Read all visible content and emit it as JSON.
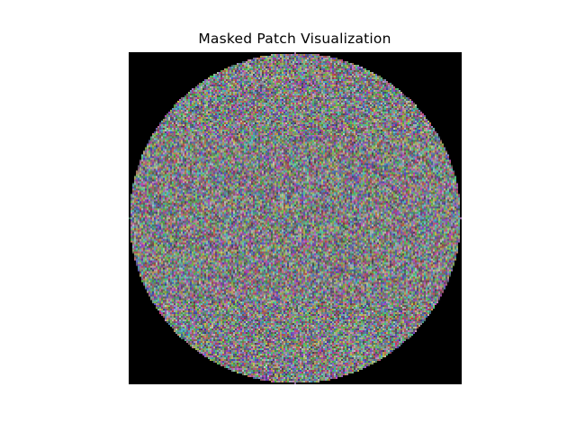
{
  "figure": {
    "title": "Masked Patch Visualization"
  },
  "image": {
    "mask_shape": "circle",
    "background_color": "#000000",
    "noise_base_color": "#7f7f80",
    "axes_visible": false
  }
}
